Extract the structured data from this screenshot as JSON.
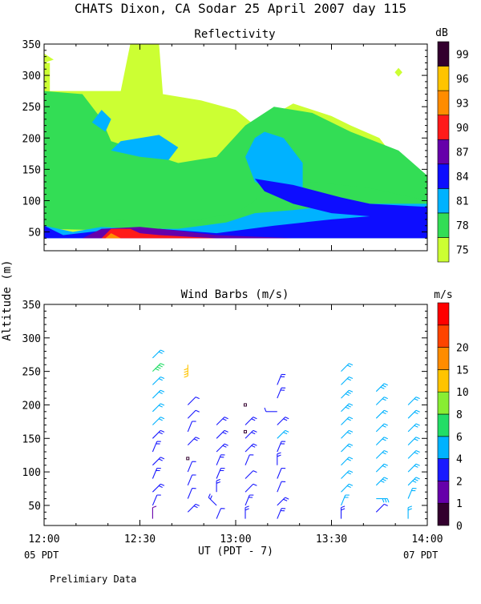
{
  "page": {
    "title": "CHATS Dixon, CA  Sodar  25 April 2007  day 115",
    "ylabel": "Altitude (m)",
    "xlabel": "UT  (PDT - 7)",
    "start_note": "05 PDT",
    "end_note": "07 PDT",
    "footer": "Prelimiary Data"
  },
  "chart_data": [
    {
      "type": "heatmap",
      "title": "Reflectivity",
      "colorbar_label": "dB",
      "xlim": [
        "12:00",
        "14:00"
      ],
      "ylim": [
        20,
        350
      ],
      "x_ticks": [
        "12:00",
        "12:30",
        "13:00",
        "13:30",
        "14:00"
      ],
      "y_ticks": [
        50,
        100,
        150,
        200,
        250,
        300,
        350
      ],
      "levels": [
        75,
        78,
        81,
        84,
        87,
        90,
        93,
        96,
        99
      ],
      "level_colors": [
        "#ccff33",
        "#33dd55",
        "#00b2ff",
        "#0d0dff",
        "#6600aa",
        "#ff1a1a",
        "#ff8c00",
        "#ffc400",
        "#33002e"
      ],
      "background": "#ffffff",
      "regions": [
        {
          "value": 75,
          "points": [
            [
              12.0,
              40
            ],
            [
              12.0,
              320
            ],
            [
              12.03,
              320
            ],
            [
              12.03,
              275
            ],
            [
              12.4,
              275
            ],
            [
              12.45,
              350
            ],
            [
              12.6,
              350
            ],
            [
              12.62,
              270
            ],
            [
              12.82,
              260
            ],
            [
              13.0,
              245
            ],
            [
              13.1,
              220
            ],
            [
              13.3,
              255
            ],
            [
              13.5,
              235
            ],
            [
              13.6,
              220
            ],
            [
              13.75,
              200
            ],
            [
              13.9,
              140
            ],
            [
              14.0,
              120
            ],
            [
              14.0,
              40
            ]
          ]
        },
        {
          "value": 75,
          "points": [
            [
              12.0,
              335
            ],
            [
              12.05,
              325
            ],
            [
              12.0,
              320
            ]
          ]
        },
        {
          "value": 75,
          "points": [
            [
              13.83,
              305
            ],
            [
              13.85,
              298
            ],
            [
              13.87,
              305
            ],
            [
              13.85,
              312
            ]
          ]
        },
        {
          "value": 78,
          "points": [
            [
              12.0,
              55
            ],
            [
              12.0,
              275
            ],
            [
              12.2,
              270
            ],
            [
              12.3,
              230
            ],
            [
              12.35,
              195
            ],
            [
              12.5,
              180
            ],
            [
              12.7,
              160
            ],
            [
              12.9,
              170
            ],
            [
              13.05,
              220
            ],
            [
              13.2,
              250
            ],
            [
              13.4,
              240
            ],
            [
              13.6,
              210
            ],
            [
              13.85,
              180
            ],
            [
              14.0,
              140
            ],
            [
              14.0,
              40
            ]
          ]
        },
        {
          "value": 78,
          "points": [
            [
              12.0,
              60
            ],
            [
              12.15,
              55
            ],
            [
              12.4,
              70
            ],
            [
              12.55,
              60
            ],
            [
              12.8,
              70
            ],
            [
              13.0,
              80
            ],
            [
              13.1,
              100
            ],
            [
              13.15,
              115
            ],
            [
              13.4,
              130
            ],
            [
              13.7,
              120
            ],
            [
              14.0,
              100
            ],
            [
              14.0,
              40
            ]
          ]
        },
        {
          "value": 81,
          "points": [
            [
              12.0,
              40
            ],
            [
              12.0,
              60
            ],
            [
              12.15,
              50
            ],
            [
              12.3,
              58
            ],
            [
              12.5,
              55
            ],
            [
              12.7,
              55
            ],
            [
              12.95,
              65
            ],
            [
              13.1,
              80
            ],
            [
              13.3,
              85
            ],
            [
              13.6,
              95
            ],
            [
              14.0,
              95
            ],
            [
              14.0,
              40
            ]
          ]
        },
        {
          "value": 81,
          "points": [
            [
              13.05,
              170
            ],
            [
              13.1,
              200
            ],
            [
              13.15,
              210
            ],
            [
              13.25,
              200
            ],
            [
              13.35,
              160
            ],
            [
              13.35,
              120
            ],
            [
              13.2,
              115
            ],
            [
              13.1,
              130
            ]
          ]
        },
        {
          "value": 81,
          "points": [
            [
              12.35,
              180
            ],
            [
              12.4,
              195
            ],
            [
              12.6,
              205
            ],
            [
              12.7,
              185
            ],
            [
              12.65,
              165
            ],
            [
              12.5,
              170
            ]
          ]
        },
        {
          "value": 81,
          "points": [
            [
              12.25,
              225
            ],
            [
              12.3,
              245
            ],
            [
              12.35,
              230
            ],
            [
              12.32,
              210
            ]
          ]
        },
        {
          "value": 84,
          "points": [
            [
              12.0,
              40
            ],
            [
              12.0,
              60
            ],
            [
              12.1,
              45
            ],
            [
              12.3,
              52
            ],
            [
              12.6,
              55
            ],
            [
              12.9,
              48
            ],
            [
              13.2,
              60
            ],
            [
              13.5,
              70
            ],
            [
              13.7,
              75
            ],
            [
              14.0,
              80
            ],
            [
              14.0,
              40
            ]
          ]
        },
        {
          "value": 84,
          "points": [
            [
              13.1,
              135
            ],
            [
              13.3,
              125
            ],
            [
              13.55,
              105
            ],
            [
              13.7,
              95
            ],
            [
              14.0,
              90
            ],
            [
              14.0,
              75
            ],
            [
              13.7,
              75
            ],
            [
              13.5,
              80
            ],
            [
              13.3,
              95
            ],
            [
              13.15,
              115
            ]
          ]
        },
        {
          "value": 87,
          "points": [
            [
              12.2,
              40
            ],
            [
              12.3,
              55
            ],
            [
              12.5,
              58
            ],
            [
              12.7,
              52
            ],
            [
              12.9,
              45
            ],
            [
              13.3,
              40
            ]
          ]
        },
        {
          "value": 90,
          "points": [
            [
              12.3,
              40
            ],
            [
              12.35,
              55
            ],
            [
              12.45,
              55
            ],
            [
              12.5,
              48
            ],
            [
              12.6,
              45
            ],
            [
              12.9,
              40
            ]
          ]
        },
        {
          "value": 93,
          "points": [
            [
              12.32,
              40
            ],
            [
              12.35,
              48
            ],
            [
              12.4,
              40
            ]
          ]
        }
      ]
    },
    {
      "type": "scatter",
      "title": "Wind Barbs (m/s)",
      "colorbar_label": "m/s",
      "xlim": [
        "12:00",
        "14:00"
      ],
      "ylim": [
        20,
        350
      ],
      "x_ticks": [
        "12:00",
        "12:30",
        "13:00",
        "13:30",
        "14:00"
      ],
      "y_ticks": [
        50,
        100,
        150,
        200,
        250,
        300,
        350
      ],
      "levels": [
        0,
        1,
        2,
        4,
        6,
        8,
        10,
        15,
        20
      ],
      "level_colors": [
        "#33002e",
        "#6600aa",
        "#1a1aff",
        "#00b2ff",
        "#22dd66",
        "#88ee33",
        "#ffc400",
        "#ff8c00",
        "#ff4400",
        "#ff0000"
      ],
      "profiles": [
        {
          "time": "12:34",
          "rows": [
            [
              30,
              "n",
              1
            ],
            [
              50,
              "nne",
              2
            ],
            [
              70,
              "ne",
              3
            ],
            [
              90,
              "nne",
              3
            ],
            [
              110,
              "ne",
              3
            ],
            [
              130,
              "nne",
              3
            ],
            [
              150,
              "ne",
              3
            ],
            [
              170,
              "ne",
              4
            ],
            [
              190,
              "ne",
              4
            ],
            [
              210,
              "ne",
              4
            ],
            [
              230,
              "ne",
              4
            ],
            [
              250,
              "ne",
              7
            ],
            [
              270,
              "ne",
              4
            ]
          ]
        },
        {
          "time": "12:45",
          "rows": [
            [
              40,
              "ne",
              3
            ],
            [
              60,
              "nne",
              2
            ],
            [
              80,
              "nne",
              2
            ],
            [
              100,
              "nne",
              2
            ],
            [
              120,
              "calm",
              0
            ],
            [
              140,
              "ne",
              3
            ],
            [
              160,
              "nne",
              2
            ],
            [
              180,
              "ne",
              2
            ],
            [
              200,
              "ne",
              2
            ],
            [
              260,
              "s",
              13
            ]
          ]
        },
        {
          "time": "12:54",
          "rows": [
            [
              30,
              "nne",
              2
            ],
            [
              50,
              "nw",
              3
            ],
            [
              70,
              "n",
              3
            ],
            [
              90,
              "nne",
              3
            ],
            [
              110,
              "nne",
              3
            ],
            [
              130,
              "ne",
              3
            ],
            [
              150,
              "ne",
              3
            ],
            [
              170,
              "ne",
              3
            ]
          ]
        },
        {
          "time": "13:03",
          "rows": [
            [
              30,
              "n",
              3
            ],
            [
              50,
              "nne",
              3
            ],
            [
              70,
              "ne",
              2
            ],
            [
              90,
              "ne",
              2
            ],
            [
              110,
              "nne",
              2
            ],
            [
              130,
              "ne",
              3
            ],
            [
              150,
              "ne",
              3
            ],
            [
              160,
              "calm",
              0
            ],
            [
              170,
              "ne",
              3
            ],
            [
              200,
              "calm",
              0
            ]
          ]
        },
        {
          "time": "13:13",
          "rows": [
            [
              30,
              "nne",
              3
            ],
            [
              50,
              "ne",
              3
            ],
            [
              70,
              "nne",
              2
            ],
            [
              90,
              "nne",
              2
            ],
            [
              110,
              "n",
              3
            ],
            [
              130,
              "nne",
              3
            ],
            [
              150,
              "ne",
              4
            ],
            [
              170,
              "ne",
              3
            ],
            [
              190,
              "w",
              2
            ],
            [
              210,
              "nne",
              3
            ],
            [
              230,
              "nne",
              3
            ]
          ]
        },
        {
          "time": "13:33",
          "rows": [
            [
              30,
              "n",
              3
            ],
            [
              50,
              "nne",
              4
            ],
            [
              70,
              "ne",
              4
            ],
            [
              90,
              "ne",
              4
            ],
            [
              110,
              "ne",
              4
            ],
            [
              130,
              "ne",
              4
            ],
            [
              150,
              "ne",
              4
            ],
            [
              170,
              "ne",
              4
            ],
            [
              190,
              "ne",
              5
            ],
            [
              210,
              "ne",
              5
            ],
            [
              230,
              "ne",
              4
            ],
            [
              250,
              "ne",
              4
            ]
          ]
        },
        {
          "time": "13:44",
          "rows": [
            [
              40,
              "ne",
              2
            ],
            [
              60,
              "e",
              5
            ],
            [
              80,
              "ne",
              5
            ],
            [
              100,
              "ne",
              4
            ],
            [
              120,
              "ne",
              4
            ],
            [
              140,
              "ne",
              4
            ],
            [
              160,
              "ne",
              4
            ],
            [
              180,
              "ne",
              4
            ],
            [
              200,
              "ne",
              4
            ],
            [
              220,
              "ne",
              5
            ]
          ]
        },
        {
          "time": "13:54",
          "rows": [
            [
              30,
              "n",
              4
            ],
            [
              60,
              "nne",
              4
            ],
            [
              80,
              "ne",
              5
            ],
            [
              100,
              "ne",
              4
            ],
            [
              120,
              "ne",
              4
            ],
            [
              140,
              "ne",
              4
            ],
            [
              160,
              "ne",
              4
            ],
            [
              180,
              "ne",
              4
            ],
            [
              200,
              "ne",
              4
            ]
          ]
        }
      ]
    }
  ]
}
